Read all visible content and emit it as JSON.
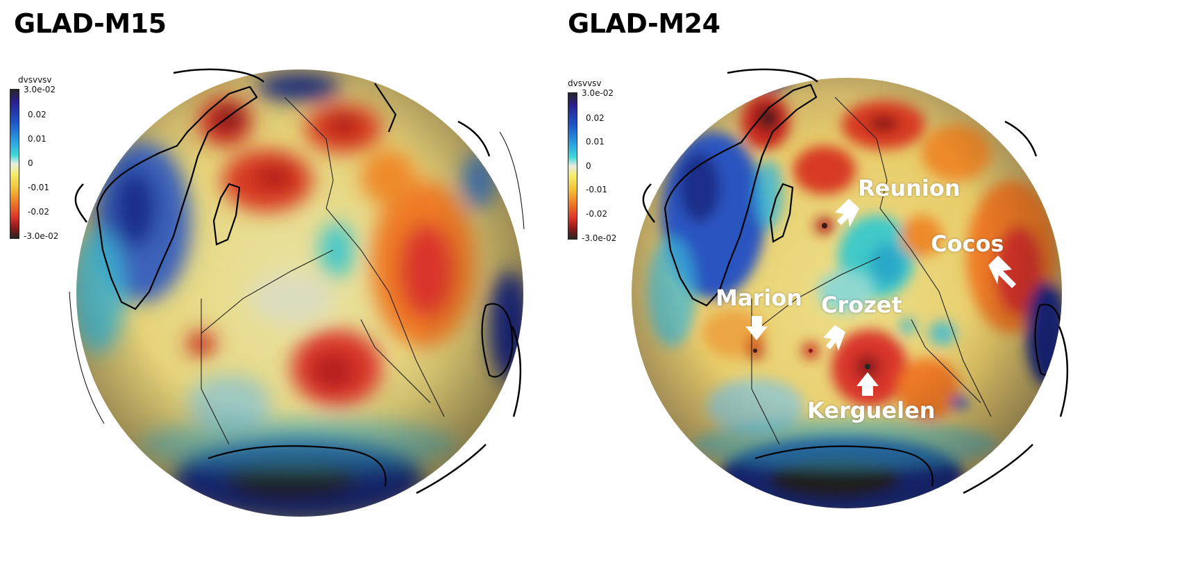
{
  "panels": [
    {
      "title": "GLAD-M15",
      "colorbar": {
        "title": "dvsvvsv",
        "ticks": [
          "3.0e-02",
          "0.02",
          "0.01",
          "0",
          "-0.01",
          "-0.02",
          "-3.0e-02"
        ]
      }
    },
    {
      "title": "GLAD-M24",
      "colorbar": {
        "title": "dvsvvsv",
        "ticks": [
          "3.0e-02",
          "0.02",
          "0.01",
          "0",
          "-0.01",
          "-0.02",
          "-3.0e-02"
        ]
      },
      "annotations": {
        "reunion": "Reunion",
        "cocos": "Cocos",
        "marion": "Marion",
        "crozet": "Crozet",
        "kerguelen": "Kerguelen"
      }
    }
  ],
  "colors": {
    "scale": [
      "#2b2b2b",
      "#2a1f8a",
      "#1e55c8",
      "#2ea7e0",
      "#3fd9d9",
      "#e8ece2",
      "#f4ec6a",
      "#f2c33a",
      "#ee7a26",
      "#d9342a",
      "#8c1a1a",
      "#262626"
    ]
  },
  "icons": [
    "arrow-icon"
  ]
}
